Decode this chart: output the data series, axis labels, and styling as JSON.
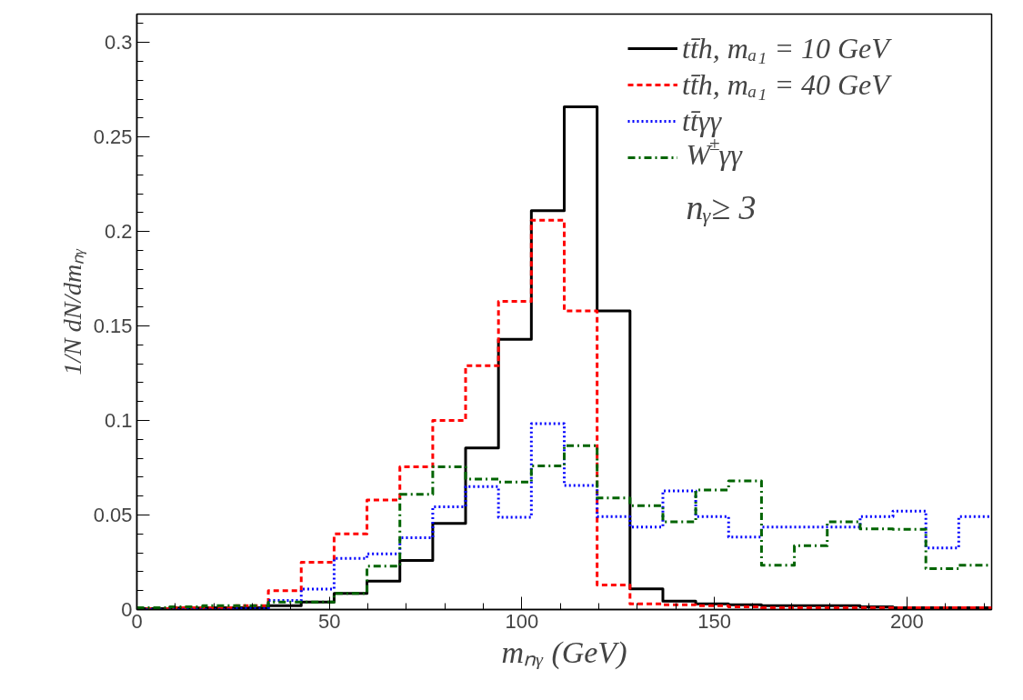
{
  "chart_data": {
    "type": "histogram",
    "xlabel": "mₙᵧ (GeV)",
    "ylabel": "1/N dN/dmₙᵧ",
    "bins": [
      0,
      8.54,
      17.08,
      25.62,
      34.15,
      42.69,
      51.23,
      59.77,
      68.31,
      76.85,
      85.38,
      93.92,
      102.46,
      111,
      119.54,
      128.08,
      136.62,
      145.15,
      153.69,
      162.23,
      170.77,
      179.31,
      187.85,
      196.38,
      204.92,
      213.46,
      222
    ],
    "series": [
      {
        "name": "tt̄h, mₐ₁ = 10 GeV",
        "color": "#000000",
        "line_style": "solid",
        "values": [
          0.0005,
          0.0008,
          0.001,
          0.001,
          0.002,
          0.004,
          0.0085,
          0.015,
          0.026,
          0.0456,
          0.0855,
          0.143,
          0.211,
          0.266,
          0.158,
          0.011,
          0.0045,
          0.003,
          0.0025,
          0.002,
          0.002,
          0.002,
          0.0015,
          0.001,
          0.001,
          0.001
        ]
      },
      {
        "name": "tt̄h, mₐ₁ = 40 GeV",
        "color": "#ff0000",
        "line_style": "dashed",
        "values": [
          0.0005,
          0.001,
          0.001,
          0.002,
          0.01,
          0.025,
          0.04,
          0.058,
          0.0755,
          0.1,
          0.129,
          0.163,
          0.206,
          0.158,
          0.013,
          0.003,
          0.0025,
          0.002,
          0.0015,
          0.001,
          0.001,
          0.001,
          0.001,
          0.001,
          0.001,
          0.001
        ]
      },
      {
        "name": "tt̄γγ",
        "color": "#0000ff",
        "line_style": "dotted",
        "values": [
          0,
          0,
          0,
          0.0005,
          0.0048,
          0.0108,
          0.027,
          0.0295,
          0.038,
          0.0544,
          0.065,
          0.0488,
          0.0983,
          0.0656,
          0.0492,
          0.0436,
          0.0628,
          0.0492,
          0.0384,
          0.0436,
          0.0436,
          0.0436,
          0.0492,
          0.0521,
          0.0326,
          0.0492
        ]
      },
      {
        "name": "W$^{±}$γγ",
        "color": "#006400",
        "line_style": "dashdot",
        "values": [
          0.001,
          0.0015,
          0.002,
          0.002,
          0.004,
          0.004,
          0.0085,
          0.023,
          0.061,
          0.0755,
          0.069,
          0.0675,
          0.076,
          0.0867,
          0.059,
          0.0549,
          0.0464,
          0.0633,
          0.068,
          0.0234,
          0.0338,
          0.0464,
          0.0427,
          0.0425,
          0.0216,
          0.0234
        ]
      }
    ],
    "xlim": [
      0,
      222
    ],
    "xticks": [
      0,
      50,
      100,
      150,
      200
    ],
    "ylim": [
      0,
      0.315
    ],
    "yticks": [
      0,
      0.05,
      0.1,
      0.15,
      0.2,
      0.25,
      0.3
    ],
    "grid": false,
    "legend": "top right",
    "annotations": [
      "nᵧ≥ 3"
    ]
  }
}
